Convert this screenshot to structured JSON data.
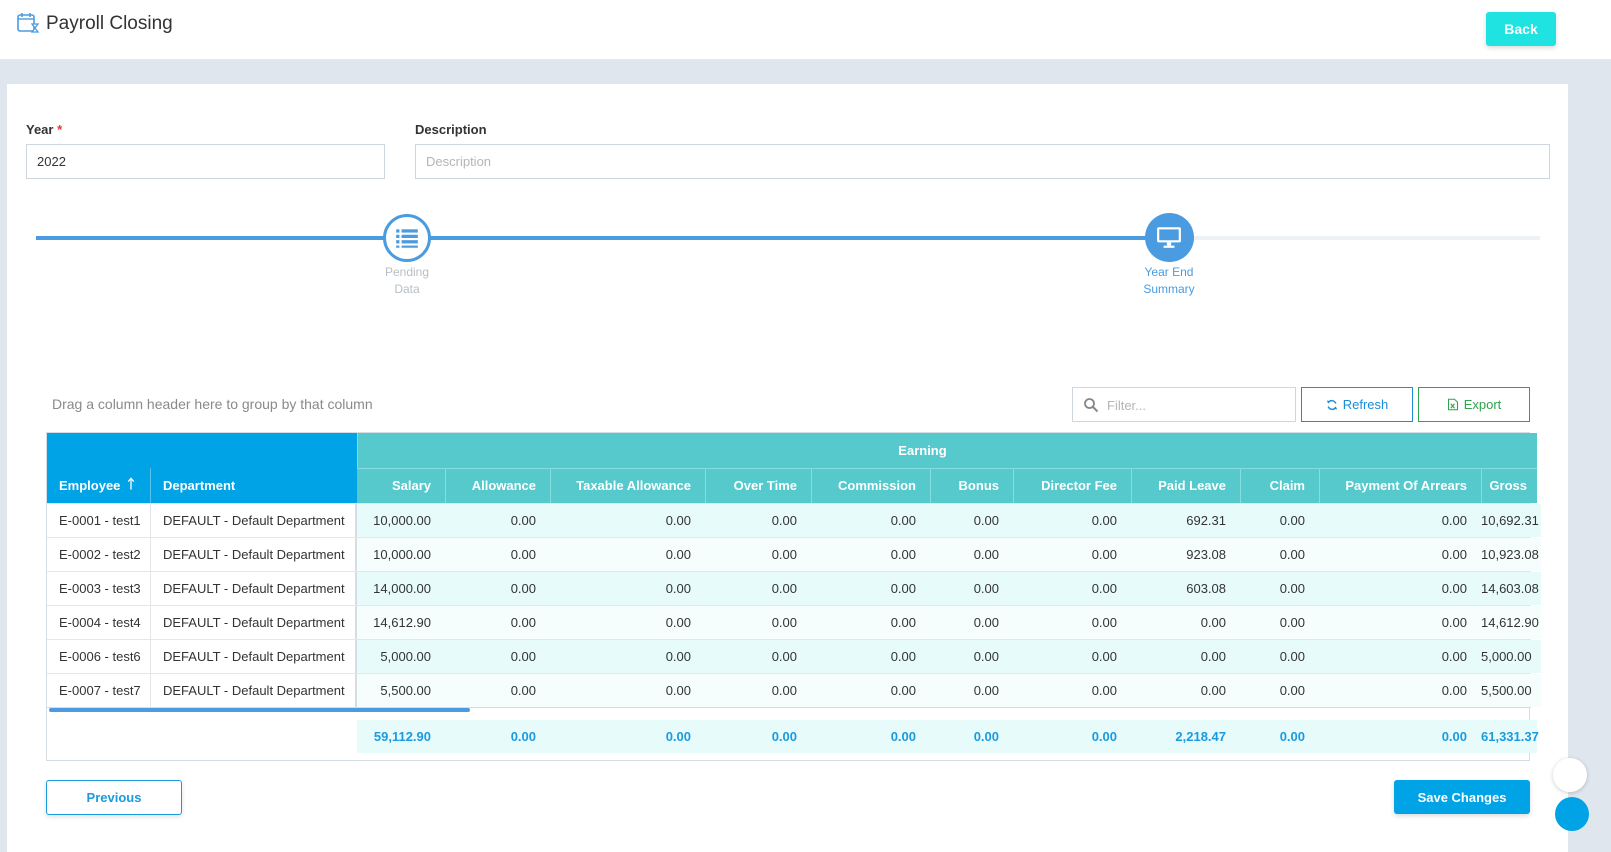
{
  "header": {
    "title": "Payroll Closing",
    "back_label": "Back",
    "icon": "calendar-hourglass-icon"
  },
  "form": {
    "year_label": "Year",
    "year_required_mark": "*",
    "year_value": "2022",
    "description_label": "Description",
    "description_placeholder": "Description",
    "description_value": ""
  },
  "stepper": {
    "steps": [
      {
        "label_line1": "Pending",
        "label_line2": "Data",
        "icon": "list-icon",
        "state": "completed"
      },
      {
        "label_line1": "Year End",
        "label_line2": "Summary",
        "icon": "monitor-icon",
        "state": "active"
      }
    ]
  },
  "toolbar": {
    "group_hint": "Drag a column header here to group by that column",
    "filter_placeholder": "Filter...",
    "refresh_label": "Refresh",
    "export_label": "Export"
  },
  "grid": {
    "fixed_columns": [
      {
        "label": "Employee",
        "sort": "ascending"
      },
      {
        "label": "Department"
      }
    ],
    "band_header": "Earning",
    "columns": [
      "Salary",
      "Allowance",
      "Taxable Allowance",
      "Over Time",
      "Commission",
      "Bonus",
      "Director Fee",
      "Paid Leave",
      "Claim",
      "Payment Of Arrears",
      "Gross"
    ],
    "rows": [
      {
        "employee": "E-0001 - test1",
        "department": "DEFAULT - Default Department",
        "values": [
          "10,000.00",
          "0.00",
          "0.00",
          "0.00",
          "0.00",
          "0.00",
          "0.00",
          "692.31",
          "0.00",
          "0.00",
          "10,692.31"
        ]
      },
      {
        "employee": "E-0002 - test2",
        "department": "DEFAULT - Default Department",
        "values": [
          "10,000.00",
          "0.00",
          "0.00",
          "0.00",
          "0.00",
          "0.00",
          "0.00",
          "923.08",
          "0.00",
          "0.00",
          "10,923.08"
        ]
      },
      {
        "employee": "E-0003 - test3",
        "department": "DEFAULT - Default Department",
        "values": [
          "14,000.00",
          "0.00",
          "0.00",
          "0.00",
          "0.00",
          "0.00",
          "0.00",
          "603.08",
          "0.00",
          "0.00",
          "14,603.08"
        ]
      },
      {
        "employee": "E-0004 - test4",
        "department": "DEFAULT - Default Department",
        "values": [
          "14,612.90",
          "0.00",
          "0.00",
          "0.00",
          "0.00",
          "0.00",
          "0.00",
          "0.00",
          "0.00",
          "0.00",
          "14,612.90"
        ]
      },
      {
        "employee": "E-0006 - test6",
        "department": "DEFAULT - Default Department",
        "values": [
          "5,000.00",
          "0.00",
          "0.00",
          "0.00",
          "0.00",
          "0.00",
          "0.00",
          "0.00",
          "0.00",
          "0.00",
          "5,000.00"
        ]
      },
      {
        "employee": "E-0007 - test7",
        "department": "DEFAULT - Default Department",
        "values": [
          "5,500.00",
          "0.00",
          "0.00",
          "0.00",
          "0.00",
          "0.00",
          "0.00",
          "0.00",
          "0.00",
          "0.00",
          "5,500.00"
        ]
      }
    ],
    "totals": [
      "59,112.90",
      "0.00",
      "0.00",
      "0.00",
      "0.00",
      "0.00",
      "0.00",
      "2,218.47",
      "0.00",
      "0.00",
      "61,331.37"
    ]
  },
  "actions": {
    "previous_label": "Previous",
    "save_label": "Save Changes"
  },
  "colors": {
    "accent": "#00a3e6",
    "band": "#55c9cc",
    "step_active": "#4a9be0",
    "back_button": "#1ee3e0"
  }
}
